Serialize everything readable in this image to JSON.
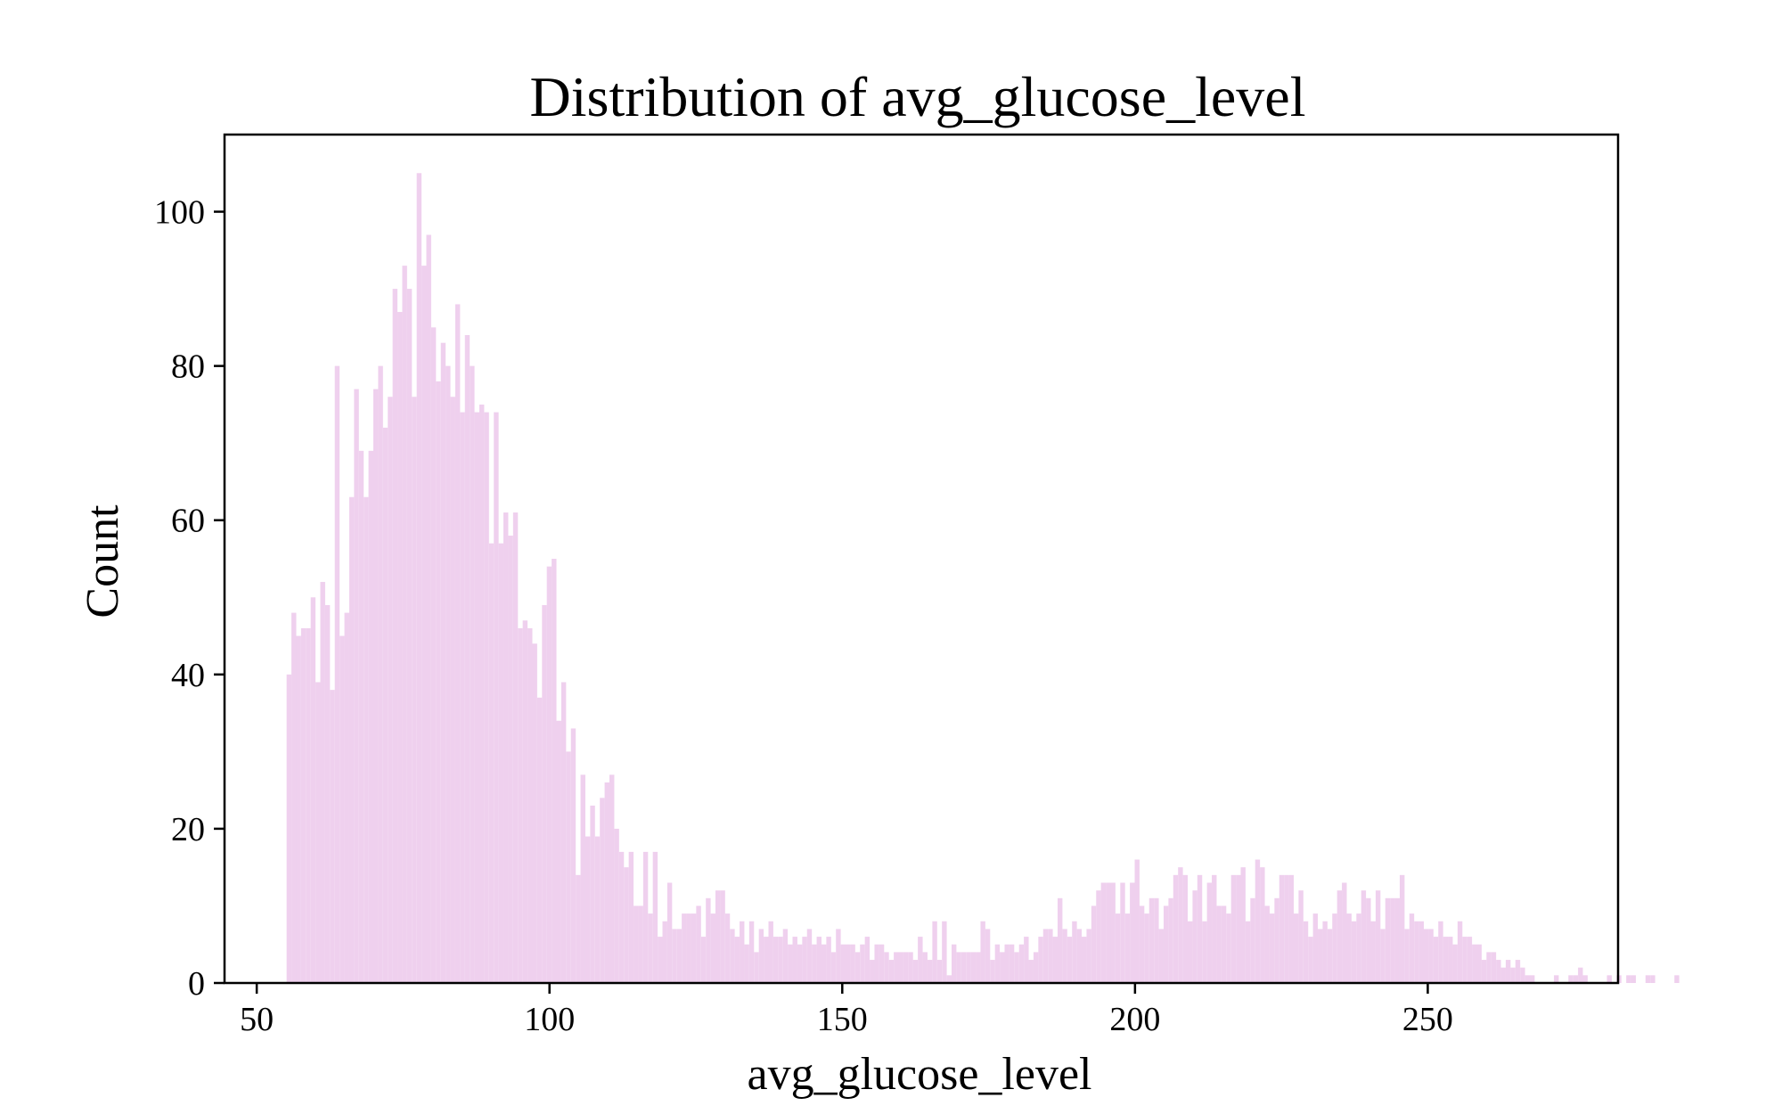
{
  "chart_data": {
    "type": "bar",
    "title": "Distribution of avg_glucose_level",
    "xlabel": "avg_glucose_level",
    "ylabel": "Count",
    "xlim": [
      44.5,
      282.5
    ],
    "ylim": [
      0,
      110
    ],
    "xticks": [
      50,
      100,
      150,
      200,
      250
    ],
    "yticks": [
      0,
      20,
      40,
      60,
      80,
      100
    ],
    "grid": false,
    "bar_color": "#efd0ee",
    "bin_start": 55.1,
    "bin_width": 0.823,
    "values": [
      40,
      48,
      45,
      46,
      46,
      50,
      39,
      52,
      49,
      38,
      80,
      45,
      48,
      63,
      77,
      69,
      63,
      69,
      77,
      80,
      72,
      76,
      90,
      87,
      93,
      90,
      76,
      105,
      93,
      97,
      85,
      78,
      83,
      80,
      76,
      88,
      74,
      84,
      80,
      74,
      75,
      74,
      57,
      74,
      57,
      61,
      58,
      61,
      46,
      47,
      46,
      44,
      37,
      49,
      54,
      55,
      34,
      39,
      30,
      33,
      14,
      27,
      19,
      23,
      19,
      24,
      26,
      27,
      20,
      17,
      15,
      17,
      10,
      10,
      17,
      9,
      17,
      6,
      8,
      13,
      7,
      7,
      9,
      9,
      9,
      10,
      6,
      11,
      9,
      12,
      12,
      9,
      7,
      6,
      8,
      5,
      8,
      4,
      7,
      6,
      8,
      6,
      6,
      7,
      5,
      6,
      5,
      6,
      7,
      5,
      6,
      5,
      6,
      4,
      7,
      5,
      5,
      5,
      4,
      5,
      6,
      3,
      5,
      5,
      4,
      3,
      4,
      4,
      4,
      4,
      3,
      6,
      4,
      3,
      8,
      3,
      8,
      1,
      5,
      4,
      4,
      4,
      4,
      4,
      8,
      7,
      3,
      5,
      4,
      5,
      5,
      4,
      5,
      6,
      3,
      4,
      6,
      7,
      7,
      6,
      11,
      7,
      6,
      8,
      7,
      6,
      7,
      10,
      12,
      13,
      13,
      13,
      9,
      13,
      9,
      13,
      16,
      10,
      9,
      11,
      11,
      7,
      10,
      11,
      14,
      15,
      14,
      8,
      12,
      14,
      8,
      13,
      14,
      10,
      10,
      9,
      14,
      14,
      15,
      8,
      11,
      16,
      15,
      10,
      9,
      11,
      14,
      14,
      14,
      9,
      12,
      8,
      6,
      9,
      7,
      8,
      7,
      9,
      12,
      13,
      9,
      8,
      9,
      12,
      11,
      8,
      12,
      7,
      11,
      11,
      11,
      14,
      7,
      9,
      8,
      8,
      7,
      7,
      6,
      8,
      6,
      6,
      5,
      8,
      6,
      6,
      5,
      5,
      3,
      4,
      4,
      3,
      2,
      3,
      2,
      3,
      2,
      1,
      1,
      0,
      0,
      0,
      0,
      1,
      0,
      0,
      1,
      1,
      2,
      1,
      0,
      0,
      0,
      0,
      1,
      0,
      1,
      0,
      1,
      1,
      0,
      0,
      1,
      1,
      0,
      0,
      0,
      0,
      1,
      0
    ]
  }
}
